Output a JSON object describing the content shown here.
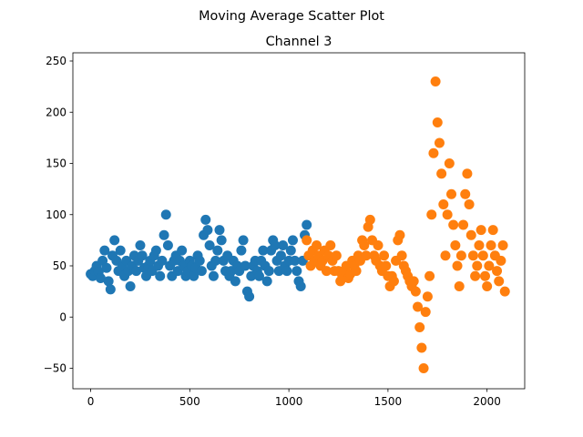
{
  "chart_data": {
    "type": "scatter",
    "suptitle": "Moving Average Scatter Plot",
    "title": "Channel 3",
    "xlabel": "",
    "ylabel": "",
    "xlim": [
      -90,
      2190
    ],
    "ylim": [
      -70,
      258
    ],
    "xticks": [
      0,
      500,
      1000,
      1500,
      2000
    ],
    "yticks": [
      -50,
      0,
      50,
      100,
      150,
      200,
      250
    ],
    "grid": false,
    "legend": "none",
    "series": [
      {
        "color": "#1f77b4",
        "points": [
          [
            0,
            42
          ],
          [
            10,
            40
          ],
          [
            20,
            45
          ],
          [
            30,
            50
          ],
          [
            40,
            44
          ],
          [
            50,
            38
          ],
          [
            60,
            55
          ],
          [
            70,
            65
          ],
          [
            80,
            48
          ],
          [
            90,
            35
          ],
          [
            100,
            27
          ],
          [
            110,
            60
          ],
          [
            120,
            75
          ],
          [
            130,
            55
          ],
          [
            140,
            45
          ],
          [
            150,
            65
          ],
          [
            160,
            50
          ],
          [
            170,
            40
          ],
          [
            180,
            55
          ],
          [
            190,
            45
          ],
          [
            200,
            30
          ],
          [
            210,
            50
          ],
          [
            220,
            60
          ],
          [
            230,
            45
          ],
          [
            240,
            55
          ],
          [
            250,
            70
          ],
          [
            260,
            60
          ],
          [
            270,
            48
          ],
          [
            280,
            40
          ],
          [
            290,
            50
          ],
          [
            300,
            55
          ],
          [
            310,
            45
          ],
          [
            320,
            60
          ],
          [
            330,
            65
          ],
          [
            340,
            50
          ],
          [
            350,
            40
          ],
          [
            360,
            55
          ],
          [
            370,
            80
          ],
          [
            380,
            100
          ],
          [
            390,
            70
          ],
          [
            400,
            50
          ],
          [
            410,
            40
          ],
          [
            420,
            55
          ],
          [
            430,
            60
          ],
          [
            440,
            45
          ],
          [
            450,
            55
          ],
          [
            460,
            65
          ],
          [
            470,
            50
          ],
          [
            480,
            40
          ],
          [
            490,
            45
          ],
          [
            500,
            55
          ],
          [
            510,
            50
          ],
          [
            520,
            40
          ],
          [
            530,
            48
          ],
          [
            540,
            60
          ],
          [
            550,
            55
          ],
          [
            560,
            45
          ],
          [
            570,
            80
          ],
          [
            580,
            95
          ],
          [
            590,
            85
          ],
          [
            600,
            70
          ],
          [
            610,
            50
          ],
          [
            620,
            40
          ],
          [
            630,
            55
          ],
          [
            640,
            65
          ],
          [
            650,
            85
          ],
          [
            660,
            75
          ],
          [
            670,
            55
          ],
          [
            680,
            45
          ],
          [
            690,
            60
          ],
          [
            700,
            40
          ],
          [
            710,
            45
          ],
          [
            720,
            55
          ],
          [
            730,
            35
          ],
          [
            740,
            50
          ],
          [
            750,
            45
          ],
          [
            760,
            65
          ],
          [
            770,
            75
          ],
          [
            780,
            50
          ],
          [
            790,
            25
          ],
          [
            800,
            20
          ],
          [
            810,
            40
          ],
          [
            820,
            50
          ],
          [
            830,
            55
          ],
          [
            840,
            45
          ],
          [
            850,
            40
          ],
          [
            860,
            55
          ],
          [
            870,
            65
          ],
          [
            880,
            50
          ],
          [
            890,
            35
          ],
          [
            900,
            45
          ],
          [
            910,
            65
          ],
          [
            920,
            75
          ],
          [
            930,
            70
          ],
          [
            940,
            55
          ],
          [
            950,
            45
          ],
          [
            960,
            60
          ],
          [
            970,
            70
          ],
          [
            980,
            50
          ],
          [
            990,
            45
          ],
          [
            1000,
            55
          ],
          [
            1010,
            65
          ],
          [
            1020,
            75
          ],
          [
            1030,
            55
          ],
          [
            1040,
            45
          ],
          [
            1050,
            35
          ],
          [
            1060,
            30
          ],
          [
            1070,
            55
          ],
          [
            1080,
            80
          ],
          [
            1090,
            90
          ]
        ]
      },
      {
        "color": "#ff7f0e",
        "points": [
          [
            1090,
            75
          ],
          [
            1100,
            60
          ],
          [
            1110,
            50
          ],
          [
            1120,
            65
          ],
          [
            1130,
            55
          ],
          [
            1140,
            70
          ],
          [
            1150,
            60
          ],
          [
            1160,
            50
          ],
          [
            1170,
            55
          ],
          [
            1180,
            65
          ],
          [
            1190,
            45
          ],
          [
            1200,
            60
          ],
          [
            1210,
            70
          ],
          [
            1220,
            55
          ],
          [
            1230,
            45
          ],
          [
            1240,
            60
          ],
          [
            1250,
            45
          ],
          [
            1260,
            35
          ],
          [
            1270,
            40
          ],
          [
            1280,
            45
          ],
          [
            1290,
            50
          ],
          [
            1300,
            38
          ],
          [
            1310,
            42
          ],
          [
            1320,
            55
          ],
          [
            1330,
            50
          ],
          [
            1340,
            45
          ],
          [
            1350,
            60
          ],
          [
            1360,
            55
          ],
          [
            1370,
            75
          ],
          [
            1380,
            70
          ],
          [
            1390,
            60
          ],
          [
            1400,
            88
          ],
          [
            1410,
            95
          ],
          [
            1420,
            75
          ],
          [
            1430,
            60
          ],
          [
            1440,
            55
          ],
          [
            1450,
            70
          ],
          [
            1460,
            50
          ],
          [
            1470,
            45
          ],
          [
            1480,
            60
          ],
          [
            1490,
            50
          ],
          [
            1500,
            40
          ],
          [
            1510,
            30
          ],
          [
            1520,
            40
          ],
          [
            1530,
            35
          ],
          [
            1540,
            55
          ],
          [
            1550,
            75
          ],
          [
            1560,
            80
          ],
          [
            1570,
            60
          ],
          [
            1580,
            50
          ],
          [
            1590,
            45
          ],
          [
            1600,
            40
          ],
          [
            1610,
            35
          ],
          [
            1620,
            30
          ],
          [
            1630,
            35
          ],
          [
            1640,
            25
          ],
          [
            1650,
            10
          ],
          [
            1660,
            -10
          ],
          [
            1670,
            -30
          ],
          [
            1680,
            -50
          ],
          [
            1690,
            5
          ],
          [
            1700,
            20
          ],
          [
            1710,
            40
          ],
          [
            1720,
            100
          ],
          [
            1730,
            160
          ],
          [
            1740,
            230
          ],
          [
            1750,
            190
          ],
          [
            1760,
            170
          ],
          [
            1770,
            140
          ],
          [
            1780,
            110
          ],
          [
            1790,
            60
          ],
          [
            1800,
            100
          ],
          [
            1810,
            150
          ],
          [
            1820,
            120
          ],
          [
            1830,
            90
          ],
          [
            1840,
            70
          ],
          [
            1850,
            50
          ],
          [
            1860,
            30
          ],
          [
            1870,
            60
          ],
          [
            1880,
            90
          ],
          [
            1890,
            120
          ],
          [
            1900,
            140
          ],
          [
            1910,
            110
          ],
          [
            1920,
            80
          ],
          [
            1930,
            60
          ],
          [
            1940,
            40
          ],
          [
            1950,
            50
          ],
          [
            1960,
            70
          ],
          [
            1970,
            85
          ],
          [
            1980,
            60
          ],
          [
            1990,
            40
          ],
          [
            2000,
            30
          ],
          [
            2010,
            50
          ],
          [
            2020,
            70
          ],
          [
            2030,
            85
          ],
          [
            2040,
            60
          ],
          [
            2050,
            45
          ],
          [
            2060,
            35
          ],
          [
            2070,
            55
          ],
          [
            2080,
            70
          ],
          [
            2090,
            25
          ]
        ]
      }
    ]
  }
}
